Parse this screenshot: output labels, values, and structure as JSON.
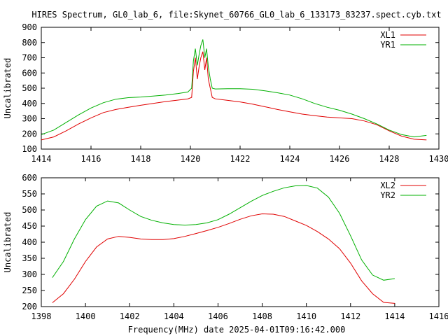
{
  "figure": {
    "title": "HIRES Spectrum, GL0_lab_6, file:Skynet_60766_GL0_lab_6_133173_83237.spect.cyb.txt",
    "xlabel": "Frequency(MHz) date 2025-04-01T09:16:42.000"
  },
  "chart_data": [
    {
      "type": "line",
      "ylabel": "Uncalibrated",
      "xlim": [
        1414,
        1430
      ],
      "ylim": [
        100,
        900
      ],
      "xticks": [
        "1414",
        "1416",
        "1418",
        "1420",
        "1422",
        "1424",
        "1426",
        "1428",
        "1430"
      ],
      "yticks": [
        "100",
        "200",
        "300",
        "400",
        "500",
        "600",
        "700",
        "800",
        "900"
      ],
      "legend_position": "top-right",
      "grid": false,
      "series": [
        {
          "name": "XL1",
          "color": "#e00000",
          "x": [
            1414.0,
            1414.5,
            1415.0,
            1415.5,
            1416.0,
            1416.5,
            1417.0,
            1417.5,
            1418.0,
            1418.5,
            1419.0,
            1419.5,
            1419.9,
            1420.05,
            1420.12,
            1420.2,
            1420.28,
            1420.35,
            1420.42,
            1420.5,
            1420.58,
            1420.65,
            1420.72,
            1420.8,
            1420.88,
            1421.0,
            1421.5,
            1422.0,
            1422.5,
            1423.0,
            1423.5,
            1424.0,
            1424.5,
            1425.0,
            1425.5,
            1426.0,
            1426.5,
            1427.0,
            1427.5,
            1428.0,
            1428.5,
            1429.0,
            1429.5
          ],
          "y": [
            160,
            180,
            220,
            265,
            305,
            340,
            360,
            375,
            388,
            400,
            412,
            422,
            430,
            440,
            610,
            700,
            560,
            640,
            700,
            740,
            620,
            700,
            560,
            500,
            440,
            430,
            420,
            410,
            395,
            378,
            360,
            345,
            330,
            320,
            310,
            305,
            300,
            285,
            260,
            220,
            185,
            165,
            160
          ]
        },
        {
          "name": "YR1",
          "color": "#00b000",
          "x": [
            1414.0,
            1414.5,
            1415.0,
            1415.5,
            1416.0,
            1416.5,
            1417.0,
            1417.5,
            1418.0,
            1418.5,
            1419.0,
            1419.5,
            1419.9,
            1420.05,
            1420.12,
            1420.2,
            1420.28,
            1420.35,
            1420.42,
            1420.5,
            1420.58,
            1420.65,
            1420.72,
            1420.8,
            1420.88,
            1421.0,
            1421.5,
            1422.0,
            1422.5,
            1423.0,
            1423.5,
            1424.0,
            1424.5,
            1425.0,
            1425.5,
            1426.0,
            1426.5,
            1427.0,
            1427.5,
            1428.0,
            1428.5,
            1429.0,
            1429.5
          ],
          "y": [
            195,
            225,
            275,
            325,
            370,
            405,
            428,
            438,
            442,
            448,
            455,
            465,
            475,
            500,
            680,
            760,
            650,
            720,
            780,
            820,
            700,
            760,
            640,
            560,
            500,
            495,
            497,
            497,
            493,
            483,
            470,
            455,
            430,
            400,
            375,
            355,
            330,
            300,
            265,
            225,
            195,
            180,
            190
          ]
        }
      ]
    },
    {
      "type": "line",
      "ylabel": "Uncalibrated",
      "xlim": [
        1398,
        1416
      ],
      "ylim": [
        200,
        600
      ],
      "xticks": [
        "1398",
        "1400",
        "1402",
        "1404",
        "1406",
        "1408",
        "1410",
        "1412",
        "1414",
        "1416"
      ],
      "yticks": [
        "200",
        "250",
        "300",
        "350",
        "400",
        "450",
        "500",
        "550",
        "600"
      ],
      "legend_position": "top-right",
      "grid": false,
      "series": [
        {
          "name": "XL2",
          "color": "#e00000",
          "x": [
            1398.5,
            1399.0,
            1399.5,
            1400.0,
            1400.5,
            1401.0,
            1401.5,
            1402.0,
            1402.5,
            1403.0,
            1403.5,
            1404.0,
            1404.5,
            1405.0,
            1405.5,
            1406.0,
            1406.5,
            1407.0,
            1407.5,
            1408.0,
            1408.5,
            1409.0,
            1409.5,
            1410.0,
            1410.5,
            1411.0,
            1411.5,
            1412.0,
            1412.5,
            1413.0,
            1413.5,
            1414.0
          ],
          "y": [
            212,
            240,
            285,
            340,
            385,
            410,
            418,
            415,
            410,
            408,
            408,
            411,
            418,
            427,
            436,
            446,
            458,
            471,
            482,
            488,
            487,
            480,
            466,
            452,
            433,
            410,
            380,
            335,
            280,
            240,
            213,
            210
          ]
        },
        {
          "name": "YR2",
          "color": "#00b000",
          "x": [
            1398.5,
            1399.0,
            1399.5,
            1400.0,
            1400.5,
            1401.0,
            1401.5,
            1402.0,
            1402.5,
            1403.0,
            1403.5,
            1404.0,
            1404.5,
            1405.0,
            1405.5,
            1406.0,
            1406.5,
            1407.0,
            1407.5,
            1408.0,
            1408.5,
            1409.0,
            1409.5,
            1410.0,
            1410.5,
            1411.0,
            1411.5,
            1412.0,
            1412.5,
            1413.0,
            1413.5,
            1414.0
          ],
          "y": [
            290,
            340,
            410,
            470,
            512,
            528,
            522,
            500,
            480,
            468,
            460,
            455,
            453,
            455,
            460,
            470,
            487,
            507,
            527,
            545,
            558,
            569,
            575,
            576,
            568,
            540,
            490,
            420,
            345,
            298,
            282,
            287
          ]
        }
      ]
    }
  ]
}
